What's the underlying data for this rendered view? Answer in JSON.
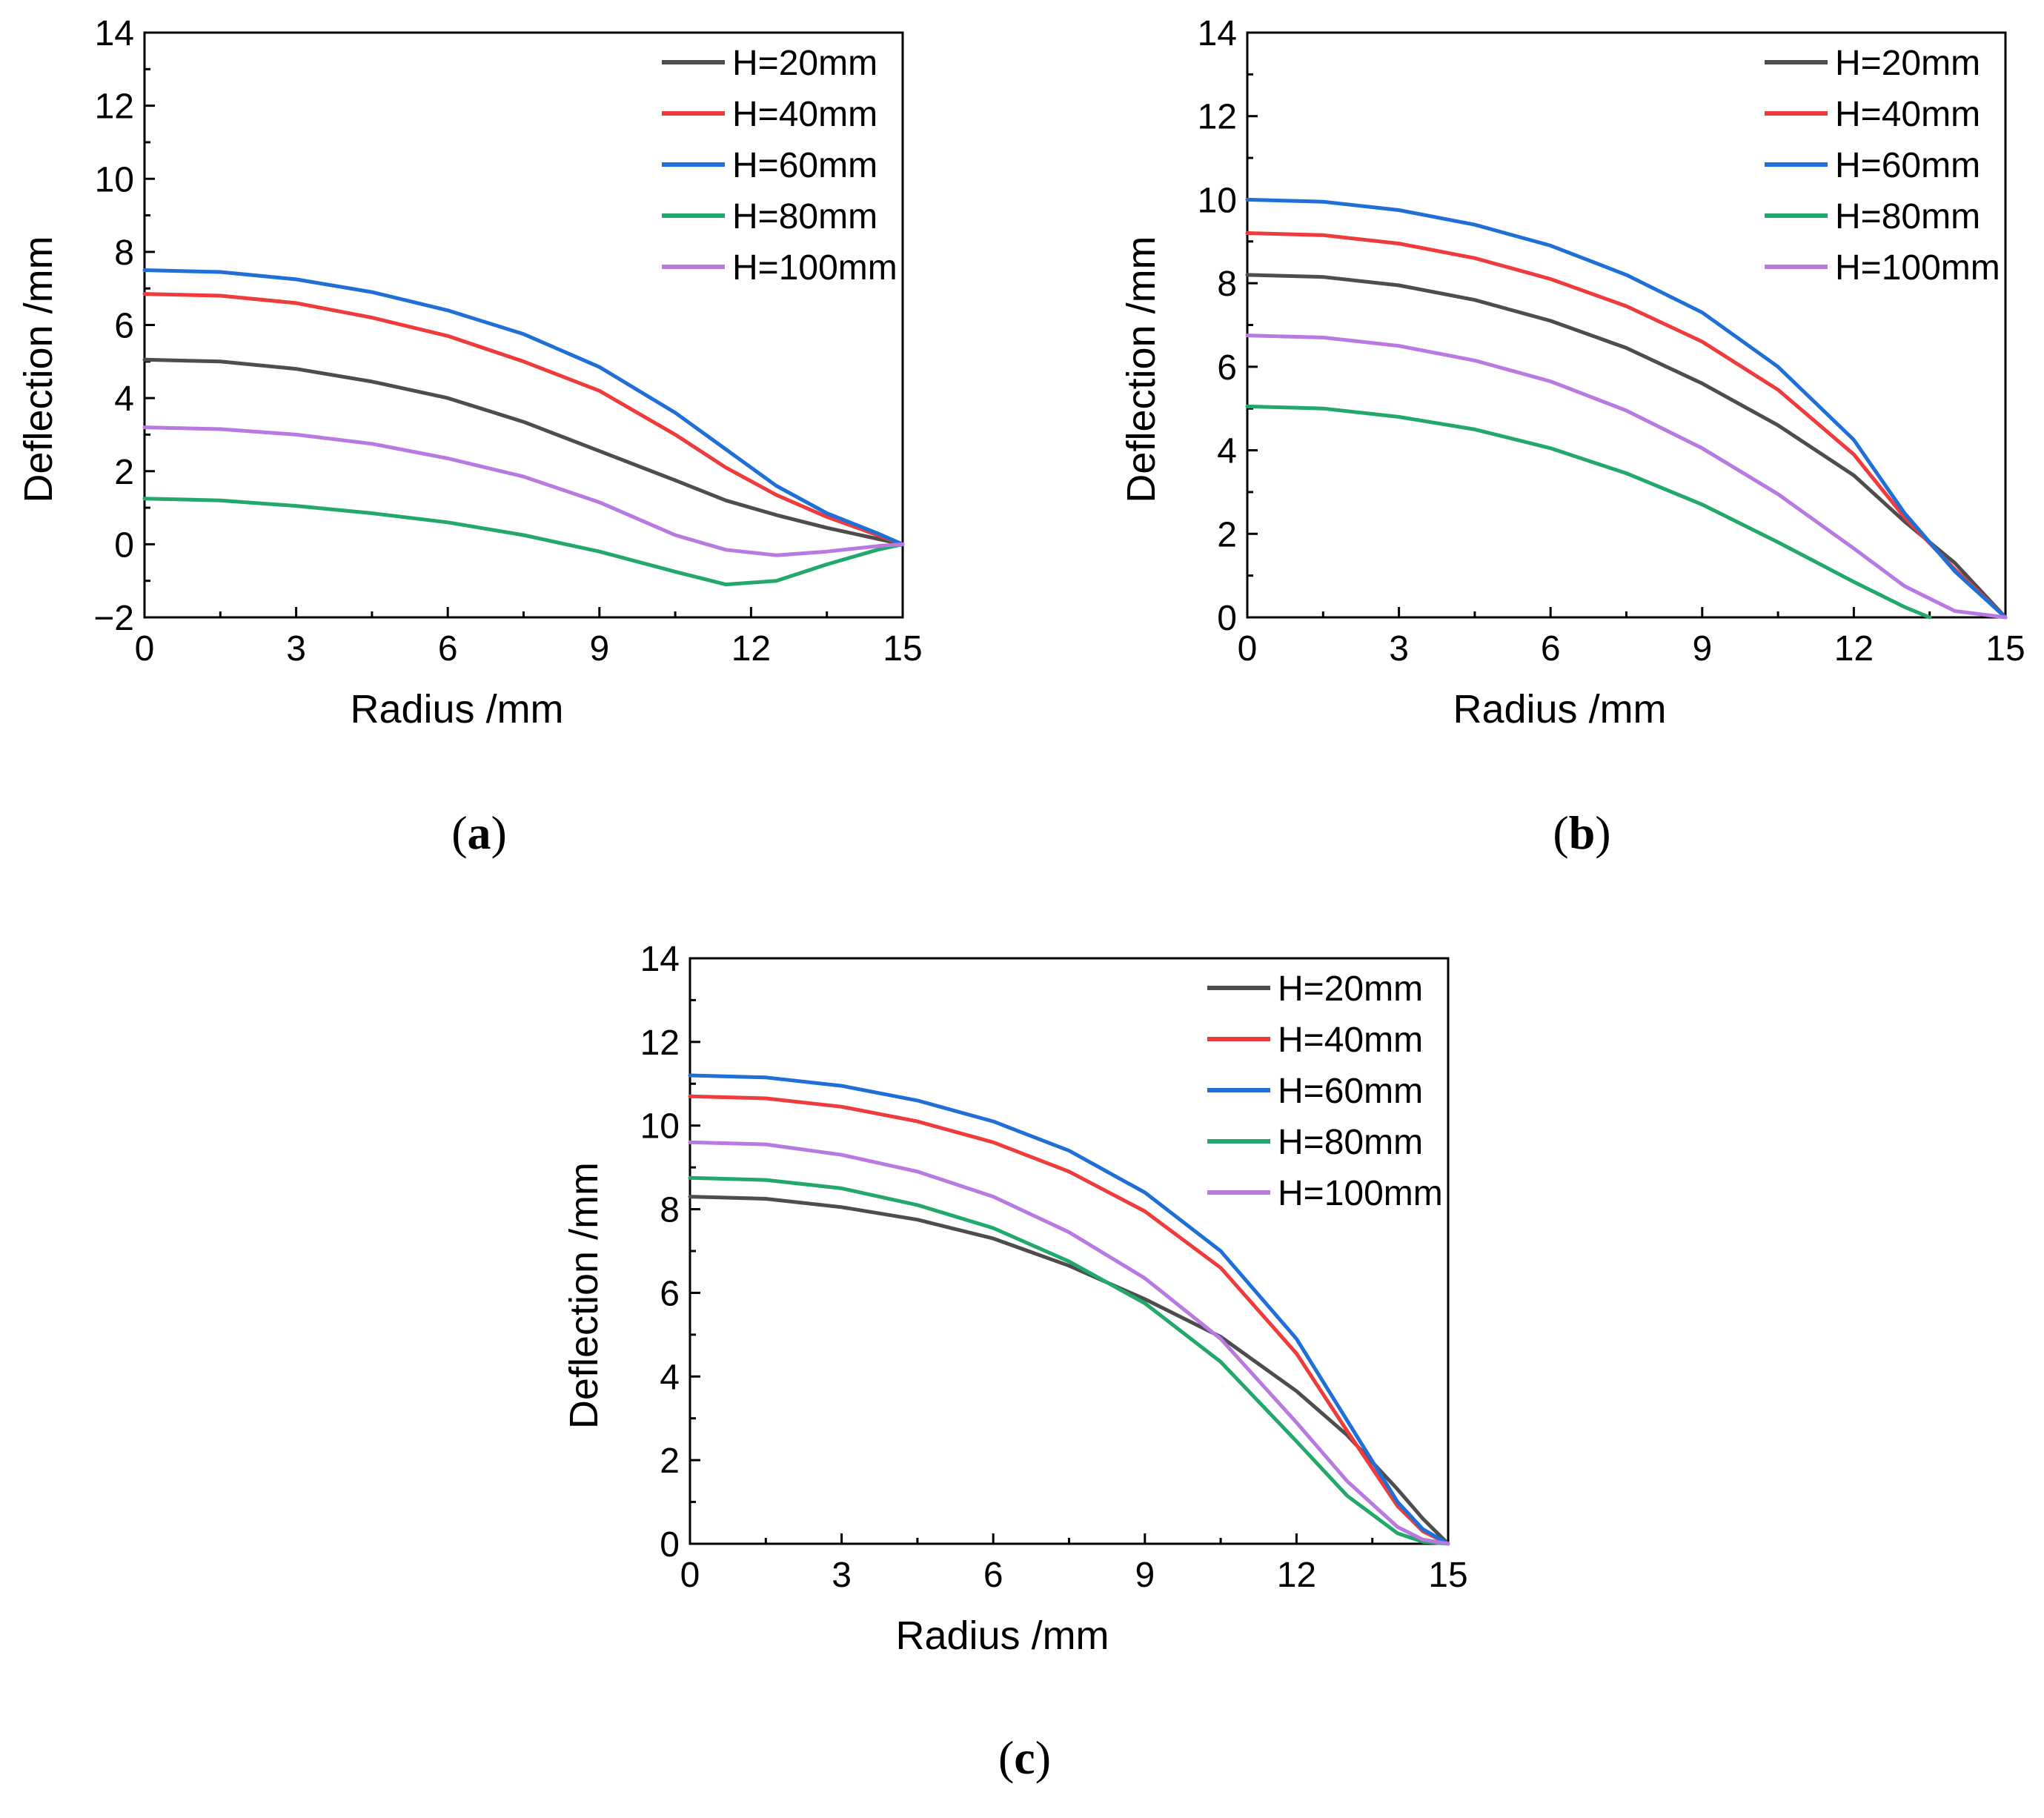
{
  "colors": {
    "H=20mm": "#4d4d4d",
    "H=40mm": "#ef3b3b",
    "H=60mm": "#1f6fd6",
    "H=80mm": "#22a86a",
    "H=100mm": "#b879e0"
  },
  "chart_data": [
    {
      "type": "line",
      "panel": "a",
      "caption_letter": "a",
      "xlabel": "Radius /mm",
      "ylabel": "Deflection /mm",
      "xlim": [
        0,
        15
      ],
      "ylim": [
        -2,
        14
      ],
      "x_ticks": [
        0,
        3,
        6,
        9,
        12,
        15
      ],
      "y_ticks": [
        -2,
        0,
        2,
        4,
        6,
        8,
        10,
        12,
        14
      ],
      "y_tick_labels": [
        "−2",
        "0",
        "2",
        "4",
        "6",
        "8",
        "10",
        "12",
        "14"
      ],
      "legend_position": "top-right",
      "x": [
        0,
        1.5,
        3,
        4.5,
        6,
        7.5,
        9,
        10.5,
        11.5,
        12.5,
        13.5,
        14.5,
        15
      ],
      "series": [
        {
          "name": "H=20mm",
          "values": [
            5.05,
            5.0,
            4.8,
            4.45,
            4.0,
            3.35,
            2.55,
            1.75,
            1.2,
            0.8,
            0.45,
            0.15,
            0
          ]
        },
        {
          "name": "H=40mm",
          "values": [
            6.85,
            6.8,
            6.6,
            6.2,
            5.7,
            5.0,
            4.2,
            3.0,
            2.1,
            1.35,
            0.75,
            0.25,
            0
          ]
        },
        {
          "name": "H=60mm",
          "values": [
            7.5,
            7.45,
            7.25,
            6.9,
            6.4,
            5.75,
            4.85,
            3.6,
            2.6,
            1.6,
            0.85,
            0.3,
            0
          ]
        },
        {
          "name": "H=80mm",
          "values": [
            1.25,
            1.2,
            1.05,
            0.85,
            0.6,
            0.25,
            -0.2,
            -0.75,
            -1.1,
            -1.0,
            -0.55,
            -0.15,
            0
          ]
        },
        {
          "name": "H=100mm",
          "values": [
            3.2,
            3.15,
            3.0,
            2.75,
            2.35,
            1.85,
            1.15,
            0.25,
            -0.15,
            -0.3,
            -0.2,
            -0.05,
            0
          ]
        }
      ]
    },
    {
      "type": "line",
      "panel": "b",
      "caption_letter": "b",
      "xlabel": "Radius /mm",
      "ylabel": "Deflection /mm",
      "xlim": [
        0,
        15
      ],
      "ylim": [
        0,
        14
      ],
      "x_ticks": [
        0,
        3,
        6,
        9,
        12,
        15
      ],
      "y_ticks": [
        0,
        2,
        4,
        6,
        8,
        10,
        12,
        14
      ],
      "y_tick_labels": [
        "0",
        "2",
        "4",
        "6",
        "8",
        "10",
        "12",
        "14"
      ],
      "legend_position": "top-right",
      "series": [
        {
          "name": "H=20mm",
          "x": [
            0,
            1.5,
            3,
            4.5,
            6,
            7.5,
            9,
            10.5,
            12,
            13,
            14,
            15
          ],
          "values": [
            8.2,
            8.15,
            7.95,
            7.6,
            7.1,
            6.45,
            5.6,
            4.6,
            3.4,
            2.3,
            1.3,
            0
          ]
        },
        {
          "name": "H=40mm",
          "x": [
            0,
            1.5,
            3,
            4.5,
            6,
            7.5,
            9,
            10.5,
            12,
            13,
            14,
            15
          ],
          "values": [
            9.2,
            9.15,
            8.95,
            8.6,
            8.1,
            7.45,
            6.6,
            5.45,
            3.9,
            2.4,
            1.15,
            0
          ]
        },
        {
          "name": "H=60mm",
          "x": [
            0,
            1.5,
            3,
            4.5,
            6,
            7.5,
            9,
            10.5,
            12,
            13,
            14,
            15
          ],
          "values": [
            10.0,
            9.95,
            9.75,
            9.4,
            8.9,
            8.2,
            7.3,
            6.0,
            4.25,
            2.5,
            1.1,
            0
          ]
        },
        {
          "name": "H=80mm",
          "x": [
            0,
            1.5,
            3,
            4.5,
            6,
            7.5,
            9,
            10.5,
            12,
            13,
            13.5
          ],
          "values": [
            5.05,
            5.0,
            4.8,
            4.5,
            4.05,
            3.45,
            2.7,
            1.8,
            0.85,
            0.25,
            0
          ]
        },
        {
          "name": "H=100mm",
          "x": [
            0,
            1.5,
            3,
            4.5,
            6,
            7.5,
            9,
            10.5,
            12,
            13,
            14,
            15
          ],
          "values": [
            6.75,
            6.7,
            6.5,
            6.15,
            5.65,
            4.95,
            4.05,
            2.95,
            1.65,
            0.75,
            0.15,
            0
          ]
        }
      ]
    },
    {
      "type": "line",
      "panel": "c",
      "caption_letter": "c",
      "xlabel": "Radius /mm",
      "ylabel": "Deflection /mm",
      "xlim": [
        0,
        15
      ],
      "ylim": [
        0,
        14
      ],
      "x_ticks": [
        0,
        3,
        6,
        9,
        12,
        15
      ],
      "y_ticks": [
        0,
        2,
        4,
        6,
        8,
        10,
        12,
        14
      ],
      "y_tick_labels": [
        "0",
        "2",
        "4",
        "6",
        "8",
        "10",
        "12",
        "14"
      ],
      "legend_position": "top-right",
      "x": [
        0,
        1.5,
        3,
        4.5,
        6,
        7.5,
        9,
        10.5,
        12,
        13,
        14,
        14.5,
        15
      ],
      "series": [
        {
          "name": "H=20mm",
          "values": [
            8.3,
            8.25,
            8.05,
            7.75,
            7.3,
            6.65,
            5.85,
            4.95,
            3.65,
            2.6,
            1.3,
            0.6,
            0
          ]
        },
        {
          "name": "H=40mm",
          "values": [
            10.7,
            10.65,
            10.45,
            10.1,
            9.6,
            8.9,
            7.95,
            6.6,
            4.55,
            2.7,
            0.9,
            0.3,
            0
          ]
        },
        {
          "name": "H=60mm",
          "values": [
            11.2,
            11.15,
            10.95,
            10.6,
            10.1,
            9.4,
            8.4,
            7.0,
            4.9,
            2.95,
            1.0,
            0.35,
            0
          ]
        },
        {
          "name": "H=80mm",
          "values": [
            8.75,
            8.7,
            8.5,
            8.1,
            7.55,
            6.75,
            5.75,
            4.35,
            2.45,
            1.15,
            0.25,
            0.05,
            0
          ]
        },
        {
          "name": "H=100mm",
          "values": [
            9.6,
            9.55,
            9.3,
            8.9,
            8.3,
            7.45,
            6.35,
            4.9,
            2.9,
            1.5,
            0.4,
            0.1,
            0
          ]
        }
      ]
    }
  ]
}
